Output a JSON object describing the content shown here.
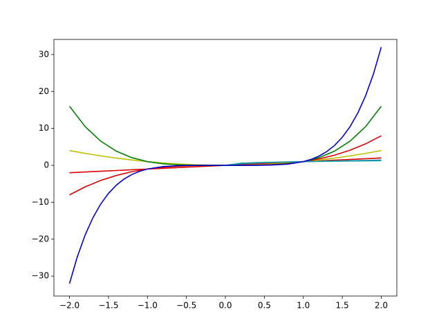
{
  "chart_data": {
    "type": "line",
    "xlim": [
      -2.2,
      2.2
    ],
    "ylim": [
      -35.4,
      34.1
    ],
    "xticks": [
      {
        "value": -2,
        "label": "−2.0"
      },
      {
        "value": -1.5,
        "label": "−1.5"
      },
      {
        "value": -1,
        "label": "−1.0"
      },
      {
        "value": -0.5,
        "label": "−0.5"
      },
      {
        "value": 0,
        "label": "0.0"
      },
      0.5,
      {
        "value": 1,
        "label": "1.0"
      },
      1.5,
      {
        "value": 2,
        "label": "2.0"
      }
    ],
    "yticks": [
      {
        "value": -30,
        "label": "−30"
      },
      {
        "value": -20,
        "label": "−20"
      },
      {
        "value": -10,
        "label": "−10"
      },
      0,
      10,
      20,
      30
    ],
    "series": [
      {
        "color": "#dd0000",
        "x": [
          -2,
          -1.8,
          -1.6,
          -1.4,
          -1.2,
          -1,
          -0.8,
          -0.6,
          -0.4,
          -0.2,
          0,
          0.2,
          0.4,
          0.6,
          0.8,
          1,
          1.2,
          1.4,
          1.6,
          1.8,
          2
        ],
        "values": [
          -2,
          -1.8,
          -1.6,
          -1.4,
          -1.2,
          -1,
          -0.8,
          -0.6,
          -0.4,
          -0.2,
          0,
          0.2,
          0.4,
          0.6,
          0.8,
          1,
          1.2,
          1.4,
          1.6,
          1.8,
          2
        ]
      },
      {
        "color": "#bfbf00",
        "x": [
          -2,
          -1.8,
          -1.6,
          -1.4,
          -1.2,
          -1,
          -0.8,
          -0.6,
          -0.4,
          -0.2,
          0,
          0.2,
          0.4,
          0.6,
          0.8,
          1,
          1.2,
          1.4,
          1.6,
          1.8,
          2
        ],
        "values": [
          4,
          3.24,
          2.56,
          1.96,
          1.44,
          1,
          0.64,
          0.36,
          0.16,
          0.04,
          0,
          0.04,
          0.16,
          0.36,
          0.64,
          1,
          1.44,
          1.96,
          2.56,
          3.24,
          4
        ]
      },
      {
        "color": "#dd0000",
        "x": [
          -2,
          -1.8,
          -1.6,
          -1.4,
          -1.2,
          -1,
          -0.8,
          -0.6,
          -0.4,
          -0.2,
          0,
          0.2,
          0.4,
          0.6,
          0.8,
          1,
          1.2,
          1.4,
          1.6,
          1.8,
          2
        ],
        "values": [
          -8,
          -5.832,
          -4.096,
          -2.744,
          -1.728,
          -1,
          -0.512,
          -0.216,
          -0.064,
          -0.008,
          0,
          0.008,
          0.064,
          0.216,
          0.512,
          1,
          1.728,
          2.744,
          4.096,
          5.832,
          8
        ]
      },
      {
        "color": "#008000",
        "x": [
          -2,
          -1.8,
          -1.6,
          -1.4,
          -1.2,
          -1,
          -0.8,
          -0.6,
          -0.4,
          -0.2,
          0,
          0.2,
          0.4,
          0.6,
          0.8,
          1,
          1.2,
          1.4,
          1.6,
          1.8,
          2
        ],
        "values": [
          16,
          10.498,
          6.554,
          3.842,
          2.074,
          1,
          0.41,
          0.13,
          0.026,
          0.002,
          0,
          0.002,
          0.026,
          0.13,
          0.41,
          1,
          2.074,
          3.842,
          6.554,
          10.498,
          16
        ]
      },
      {
        "color": "#1f77b4",
        "x": [
          0,
          0.2,
          0.4,
          0.6,
          0.8,
          1,
          1.2,
          1.4,
          1.6,
          1.8,
          2
        ],
        "values": [
          0,
          0.447,
          0.632,
          0.775,
          0.894,
          1,
          1.095,
          1.183,
          1.265,
          1.342,
          1.414
        ]
      },
      {
        "color": "#17a0a0",
        "x": [
          0,
          0.2,
          0.4,
          0.6,
          0.8,
          1,
          1.2,
          1.4,
          1.6,
          1.8,
          2
        ],
        "values": [
          0,
          0.585,
          0.737,
          0.843,
          0.928,
          1,
          1.063,
          1.119,
          1.17,
          1.216,
          1.26
        ]
      },
      {
        "color": "#0000cc",
        "x": [
          -2,
          -1.9,
          -1.8,
          -1.7,
          -1.6,
          -1.5,
          -1.4,
          -1.3,
          -1.2,
          -1.1,
          -1,
          -0.8,
          -0.6,
          -0.4,
          -0.2,
          0,
          0.2,
          0.4,
          0.6,
          0.8,
          1,
          1.1,
          1.2,
          1.3,
          1.4,
          1.5,
          1.6,
          1.7,
          1.8,
          1.9,
          2
        ],
        "values": [
          -32,
          -24.761,
          -18.896,
          -14.199,
          -10.486,
          -7.594,
          -5.378,
          -3.713,
          -2.488,
          -1.611,
          -1,
          -0.328,
          -0.078,
          -0.01,
          0,
          0,
          0,
          0.01,
          0.078,
          0.328,
          1,
          1.611,
          2.488,
          3.713,
          5.378,
          7.594,
          10.486,
          14.199,
          18.896,
          24.761,
          32
        ]
      }
    ]
  }
}
